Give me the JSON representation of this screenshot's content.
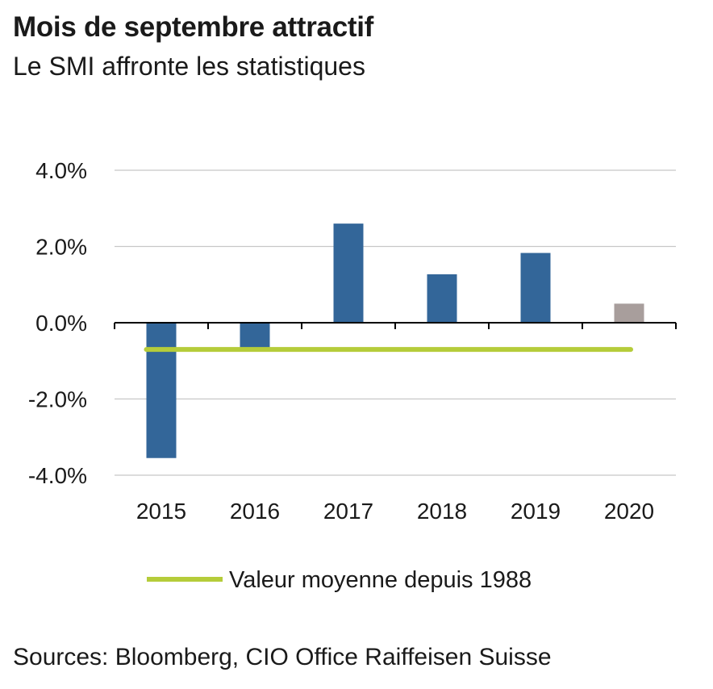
{
  "header": {
    "title": "Mois de septembre attractif",
    "subtitle": "Le SMI affronte les statistiques"
  },
  "footer": {
    "source": "Sources: Bloomberg, CIO Office Raiffeisen Suisse"
  },
  "chart_data": {
    "type": "bar",
    "categories": [
      "2015",
      "2016",
      "2017",
      "2018",
      "2019",
      "2020"
    ],
    "values": [
      -3.55,
      -0.65,
      2.6,
      1.27,
      1.83,
      0.5
    ],
    "bar_colors": [
      "#336699",
      "#336699",
      "#336699",
      "#336699",
      "#336699",
      "#a89e9c"
    ],
    "ylim": [
      -4.0,
      4.0
    ],
    "yticks": [
      4.0,
      2.0,
      0.0,
      -2.0,
      -4.0
    ],
    "ytick_labels": [
      "4.0%",
      "2.0%",
      "0.0%",
      "-2.0%",
      "-4.0%"
    ],
    "grid": true,
    "reference_line": {
      "name": "Valeur moyenne depuis 1988",
      "value": -0.7,
      "color": "#b5cc3a"
    },
    "legend": {
      "placement": "bottom",
      "entries": [
        "Valeur moyenne depuis 1988"
      ]
    }
  }
}
